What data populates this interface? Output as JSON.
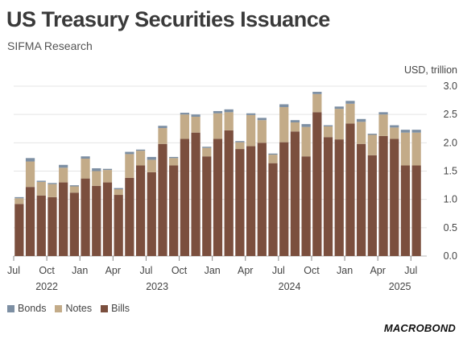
{
  "header": {
    "title": "US Treasury Securities Issuance",
    "subtitle": "SIFMA Research"
  },
  "logo": {
    "text": "MACROBOND"
  },
  "colors": {
    "bills": "#7b4f3e",
    "notes": "#c3ab88",
    "bonds": "#7d8fa3"
  },
  "chart_data": {
    "type": "bar",
    "stacked": true,
    "unit_label": "USD, trillion",
    "ylim": [
      0,
      3.0
    ],
    "yticks": [
      "0.0",
      "0.5",
      "1.0",
      "1.5",
      "2.0",
      "2.5",
      "3.0"
    ],
    "xtick_labels": [
      "Jul",
      "Oct",
      "Jan",
      "Apr",
      "Jul",
      "Oct",
      "Jan",
      "Apr",
      "Jul",
      "Oct",
      "Jan",
      "Apr",
      "Jul"
    ],
    "year_labels": [
      "2022",
      "2023",
      "2024",
      "2025"
    ],
    "grid": "horizontal",
    "legend_position": "bottom-left",
    "categories": [
      "2022-07",
      "2022-08",
      "2022-09",
      "2022-10",
      "2022-11",
      "2022-12",
      "2023-01",
      "2023-02",
      "2023-03",
      "2023-04",
      "2023-05",
      "2023-06",
      "2023-07",
      "2023-08",
      "2023-09",
      "2023-10",
      "2023-11",
      "2023-12",
      "2024-01",
      "2024-02",
      "2024-03",
      "2024-04",
      "2024-05",
      "2024-06",
      "2024-07",
      "2024-08",
      "2024-09",
      "2024-10",
      "2024-11",
      "2024-12",
      "2025-01",
      "2025-02",
      "2025-03",
      "2025-04",
      "2025-05",
      "2025-06",
      "2025-07"
    ],
    "series": [
      {
        "name": "Bills",
        "values": [
          0.92,
          1.22,
          1.07,
          1.04,
          1.3,
          1.12,
          1.37,
          1.24,
          1.3,
          1.08,
          1.38,
          1.6,
          1.48,
          1.98,
          1.6,
          2.07,
          2.18,
          1.76,
          2.07,
          2.22,
          1.89,
          1.94,
          2.0,
          1.64,
          2.01,
          2.2,
          1.76,
          2.54,
          2.1,
          2.06,
          2.34,
          1.98,
          1.78,
          2.12,
          2.07,
          1.6,
          1.6
        ]
      },
      {
        "name": "Notes",
        "values": [
          0.1,
          0.45,
          0.24,
          0.23,
          0.26,
          0.11,
          0.35,
          0.26,
          0.22,
          0.1,
          0.42,
          0.26,
          0.22,
          0.28,
          0.13,
          0.43,
          0.28,
          0.15,
          0.45,
          0.32,
          0.12,
          0.55,
          0.4,
          0.15,
          0.62,
          0.16,
          0.52,
          0.32,
          0.19,
          0.54,
          0.35,
          0.39,
          0.36,
          0.38,
          0.2,
          0.58,
          0.58
        ]
      },
      {
        "name": "Bonds",
        "values": [
          0.02,
          0.06,
          0.02,
          0.02,
          0.05,
          0.02,
          0.04,
          0.05,
          0.02,
          0.02,
          0.04,
          0.02,
          0.05,
          0.04,
          0.02,
          0.03,
          0.04,
          0.02,
          0.04,
          0.05,
          0.02,
          0.03,
          0.04,
          0.02,
          0.05,
          0.04,
          0.05,
          0.04,
          0.02,
          0.04,
          0.05,
          0.05,
          0.02,
          0.04,
          0.04,
          0.05,
          0.05
        ]
      }
    ]
  },
  "legend": {
    "items": [
      {
        "label": "Bonds"
      },
      {
        "label": "Notes"
      },
      {
        "label": "Bills"
      }
    ]
  }
}
